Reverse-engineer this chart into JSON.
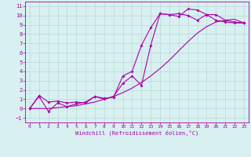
{
  "xlabel": "Windchill (Refroidissement éolien,°C)",
  "bg_color": "#d8f0f0",
  "grid_color": "#b8d8d8",
  "line_color": "#aa00aa",
  "xlim": [
    -0.5,
    23.5
  ],
  "ylim": [
    -1.5,
    11.5
  ],
  "xticks": [
    0,
    1,
    2,
    3,
    4,
    5,
    6,
    7,
    8,
    9,
    10,
    11,
    12,
    13,
    14,
    15,
    16,
    17,
    18,
    19,
    20,
    21,
    22,
    23
  ],
  "yticks": [
    -1,
    0,
    1,
    2,
    3,
    4,
    5,
    6,
    7,
    8,
    9,
    10,
    11
  ],
  "line1_x": [
    0,
    1,
    2,
    3,
    4,
    5,
    6,
    7,
    8,
    9,
    10,
    11,
    12,
    13,
    14,
    15,
    16,
    17,
    18,
    19,
    20,
    21,
    22,
    23
  ],
  "line1_y": [
    0,
    1.4,
    0.7,
    0.8,
    0.6,
    0.7,
    0.6,
    1.3,
    1.1,
    1.2,
    3.5,
    4.0,
    6.8,
    8.7,
    10.2,
    10.1,
    9.9,
    10.7,
    10.6,
    10.1,
    9.5,
    9.3,
    9.2,
    9.2
  ],
  "line2_x": [
    0,
    1,
    2,
    3,
    4,
    5,
    6,
    7,
    8,
    9,
    10,
    11,
    12,
    13,
    14,
    15,
    16,
    17,
    18,
    19,
    20,
    21,
    22,
    23
  ],
  "line2_y": [
    0,
    1.3,
    -0.3,
    0.6,
    0.2,
    0.5,
    0.7,
    1.3,
    1.0,
    1.3,
    2.7,
    3.5,
    2.5,
    6.8,
    10.2,
    10.1,
    10.2,
    10.0,
    9.5,
    10.1,
    10.1,
    9.5,
    9.3,
    9.2
  ],
  "line3_x": [
    0,
    1,
    2,
    3,
    4,
    5,
    6,
    7,
    8,
    9,
    10,
    11,
    12,
    13,
    14,
    15,
    16,
    17,
    18,
    19,
    20,
    21,
    22,
    23
  ],
  "line3_y": [
    0,
    0.0,
    0.0,
    0.1,
    0.2,
    0.3,
    0.5,
    0.7,
    1.0,
    1.3,
    1.7,
    2.2,
    2.8,
    3.5,
    4.3,
    5.2,
    6.2,
    7.2,
    8.1,
    8.8,
    9.3,
    9.5,
    9.6,
    9.2
  ]
}
